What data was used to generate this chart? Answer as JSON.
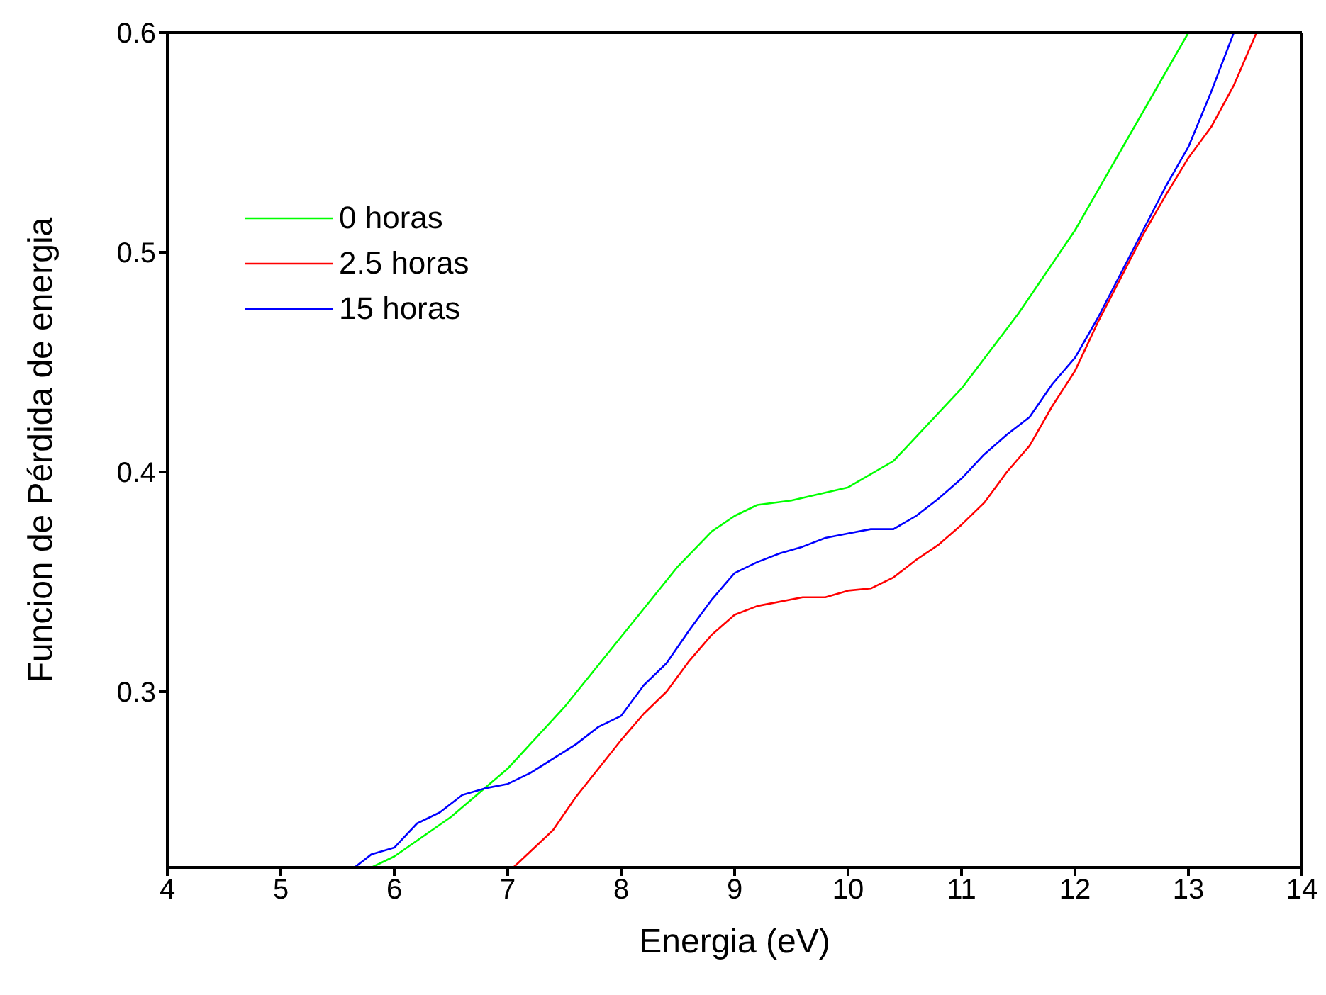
{
  "chart_data": {
    "type": "line",
    "xlabel": "Energia (eV)",
    "ylabel": "Funcion de Pérdida de energia",
    "xlim": [
      4,
      14
    ],
    "xticks": [
      4,
      5,
      6,
      7,
      8,
      9,
      10,
      11,
      12,
      13,
      14
    ],
    "ylim": [
      0.22,
      0.6
    ],
    "yticks": [
      0.3,
      0.4,
      0.5,
      0.6
    ],
    "legend": "top left",
    "marker": "none",
    "line_style": "solid",
    "series": [
      {
        "name": "0 horas",
        "color": "#00ff00",
        "x": [
          5.8,
          6,
          6.5,
          7,
          7.5,
          8,
          8.5,
          8.8,
          9,
          9.2,
          9.5,
          10,
          10.4,
          11,
          11.5,
          12,
          12.5,
          13
        ],
        "values": [
          0.22,
          0.225,
          0.243,
          0.265,
          0.293,
          0.325,
          0.357,
          0.373,
          0.38,
          0.385,
          0.387,
          0.393,
          0.405,
          0.438,
          0.472,
          0.51,
          0.555,
          0.6
        ]
      },
      {
        "name": "2.5 horas",
        "color": "#ff0000",
        "x": [
          7.05,
          7.4,
          7.6,
          8,
          8.2,
          8.4,
          8.6,
          8.8,
          9,
          9.2,
          9.6,
          9.8,
          10,
          10.2,
          10.4,
          10.6,
          10.8,
          11,
          11.2,
          11.4,
          11.6,
          11.8,
          12,
          12.2,
          12.4,
          12.6,
          12.8,
          13,
          13.2,
          13.4,
          13.6
        ],
        "values": [
          0.22,
          0.237,
          0.252,
          0.278,
          0.29,
          0.3,
          0.314,
          0.326,
          0.335,
          0.339,
          0.343,
          0.343,
          0.346,
          0.347,
          0.352,
          0.36,
          0.367,
          0.376,
          0.386,
          0.4,
          0.412,
          0.43,
          0.446,
          0.468,
          0.488,
          0.508,
          0.526,
          0.543,
          0.557,
          0.576,
          0.6
        ]
      },
      {
        "name": "15 horas",
        "color": "#0000ff",
        "x": [
          5.65,
          5.8,
          6,
          6.2,
          6.4,
          6.6,
          6.8,
          7,
          7.2,
          7.6,
          7.8,
          8,
          8.2,
          8.4,
          8.6,
          8.8,
          9,
          9.2,
          9.4,
          9.6,
          9.8,
          10,
          10.2,
          10.4,
          10.6,
          10.8,
          11,
          11.2,
          11.4,
          11.6,
          11.8,
          12,
          12.2,
          12.4,
          12.6,
          12.8,
          13,
          13.2,
          13.4
        ],
        "values": [
          0.22,
          0.226,
          0.229,
          0.24,
          0.245,
          0.253,
          0.256,
          0.258,
          0.263,
          0.276,
          0.284,
          0.289,
          0.303,
          0.313,
          0.328,
          0.342,
          0.354,
          0.359,
          0.363,
          0.366,
          0.37,
          0.372,
          0.374,
          0.374,
          0.38,
          0.388,
          0.397,
          0.408,
          0.417,
          0.425,
          0.44,
          0.452,
          0.47,
          0.49,
          0.51,
          0.53,
          0.548,
          0.573,
          0.6
        ]
      }
    ]
  }
}
